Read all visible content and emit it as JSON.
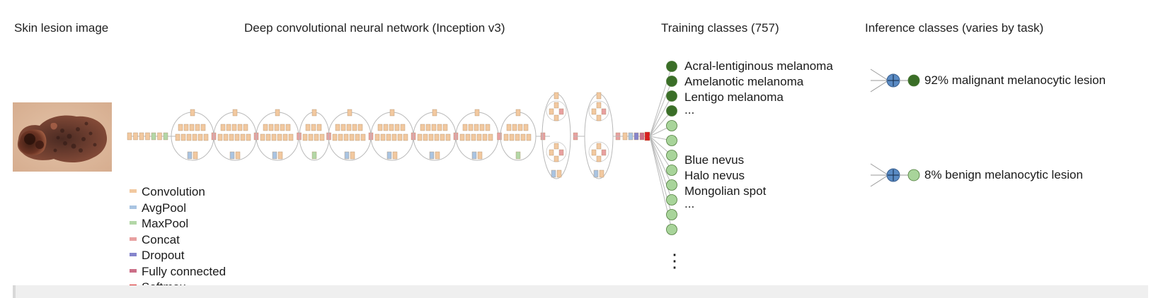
{
  "headers": {
    "input": "Skin lesion image",
    "network": "Deep convolutional neural network (Inception v3)",
    "training": "Training classes (757)",
    "inference": "Inference classes (varies by task)"
  },
  "legend": [
    {
      "label": "Convolution",
      "color": "#f2c9a0",
      "name": "convolution"
    },
    {
      "label": "AvgPool",
      "color": "#a9c4e2",
      "name": "avgpool"
    },
    {
      "label": "MaxPool",
      "color": "#b3d7a7",
      "name": "maxpool"
    },
    {
      "label": "Concat",
      "color": "#e8a0a0",
      "name": "concat"
    },
    {
      "label": "Dropout",
      "color": "#8585cc",
      "name": "dropout"
    },
    {
      "label": "Fully connected",
      "color": "#cc6f88",
      "name": "fully-connected"
    },
    {
      "label": "Softmax",
      "color": "#d81f1f",
      "name": "softmax"
    }
  ],
  "training_classes": {
    "malignant": [
      "Acral-lentiginous melanoma",
      "Amelanotic melanoma",
      "Lentigo melanoma",
      "..."
    ],
    "benign": [
      "Blue nevus",
      "Halo nevus",
      "Mongolian spot",
      "..."
    ],
    "continuation": "⋮"
  },
  "inference": {
    "malignant": "92% malignant melanocytic lesion",
    "benign": "8% benign melanocytic lesion"
  },
  "colors": {
    "malignant_node": "#3a6e27",
    "benign_node": "#a8d49a",
    "sum_node": "#5a8bc4"
  }
}
